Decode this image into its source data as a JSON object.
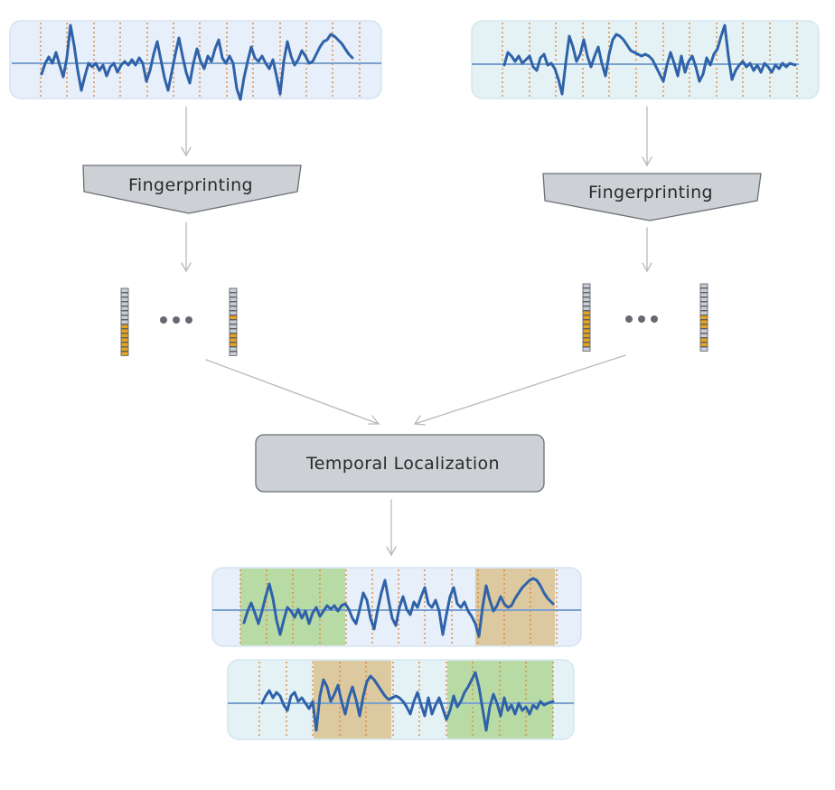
{
  "nodes": {
    "fingerprint_left": {
      "label": "Fingerprinting"
    },
    "fingerprint_right": {
      "label": "Fingerprinting"
    },
    "temporal": {
      "label": "Temporal Localization"
    }
  },
  "colors": {
    "signal_line": "#2f62a8",
    "baseline": "#7aa0cc",
    "panel_blue": "#e6effa",
    "panel_teal": "#e4f2f6",
    "panel_border": "#d7e3f1",
    "dotted_divider": "#e0893a",
    "match_green": "#b8dba6",
    "match_tan": "#dcc9a0",
    "process_fill": "#cdd1d6",
    "process_border": "#6b6f75",
    "arrow": "#b9b9b9",
    "vector_cell": "#c8ccd4",
    "vector_highlight": "#e6a323",
    "ellipsis_dot": "#666a70"
  },
  "icons": {
    "ellipsis_left": "ellipsis-icon",
    "ellipsis_right": "ellipsis-icon"
  }
}
